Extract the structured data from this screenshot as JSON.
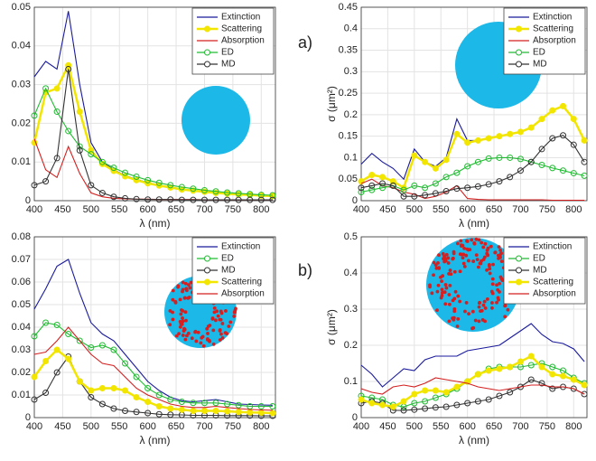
{
  "panel_labels": [
    "a)",
    "b)"
  ],
  "chart_data": [
    {
      "type": "line",
      "xlabel": "λ (nm)",
      "x": [
        400,
        420,
        440,
        460,
        480,
        500,
        520,
        540,
        560,
        580,
        600,
        620,
        640,
        660,
        680,
        700,
        720,
        740,
        760,
        780,
        800,
        820
      ],
      "xlim": [
        400,
        825
      ],
      "xticks": [
        400,
        450,
        500,
        550,
        600,
        650,
        700,
        750,
        800
      ],
      "ylim": [
        0,
        0.05
      ],
      "yticks": [
        0,
        0.01,
        0.02,
        0.03,
        0.04,
        0.05
      ],
      "grid": true,
      "legend": "northeast",
      "series": [
        {
          "name": "Extinction",
          "color": "#1a1a9c",
          "marker": "none",
          "values": [
            0.032,
            0.036,
            0.034,
            0.049,
            0.03,
            0.015,
            0.01,
            0.008,
            0.0065,
            0.0055,
            0.0047,
            0.004,
            0.0035,
            0.003,
            0.0027,
            0.0024,
            0.0021,
            0.0019,
            0.0017,
            0.0015,
            0.0014,
            0.0013
          ]
        },
        {
          "name": "Scattering",
          "color": "#f2e600",
          "marker": "filled",
          "values": [
            0.015,
            0.028,
            0.029,
            0.035,
            0.023,
            0.013,
            0.0095,
            0.0077,
            0.0063,
            0.0053,
            0.0045,
            0.0039,
            0.0034,
            0.0029,
            0.0026,
            0.0023,
            0.002,
            0.0018,
            0.0016,
            0.0015,
            0.0013,
            0.0012
          ]
        },
        {
          "name": "Absorption",
          "color": "#d42020",
          "marker": "none",
          "values": [
            0.016,
            0.008,
            0.006,
            0.014,
            0.007,
            0.002,
            0.001,
            0.0006,
            0.0005,
            0.0004,
            0.0004,
            0.0003,
            0.0003,
            0.0003,
            0.0003,
            0.0002,
            0.0002,
            0.0002,
            0.0002,
            0.0002,
            0.0002,
            0.0002
          ]
        },
        {
          "name": "ED",
          "color": "#22bb33",
          "marker": "open",
          "values": [
            0.022,
            0.029,
            0.023,
            0.018,
            0.014,
            0.012,
            0.01,
            0.0085,
            0.0072,
            0.0062,
            0.0053,
            0.0046,
            0.004,
            0.0035,
            0.0031,
            0.0027,
            0.0024,
            0.0021,
            0.0019,
            0.0017,
            0.0015,
            0.0014
          ]
        },
        {
          "name": "MD",
          "color": "#333333",
          "marker": "open",
          "values": [
            0.004,
            0.005,
            0.011,
            0.034,
            0.013,
            0.004,
            0.002,
            0.001,
            0.0006,
            0.0004,
            0.0003,
            0.0003,
            0.0003,
            0.0002,
            0.0002,
            0.0002,
            0.0002,
            0.0002,
            0.0002,
            0.0002,
            0.0002,
            0.0002
          ]
        }
      ]
    },
    {
      "type": "line",
      "xlabel": "λ (nm)",
      "ylabel": "σ (μm²)",
      "x": [
        400,
        420,
        440,
        460,
        480,
        500,
        520,
        540,
        560,
        580,
        600,
        620,
        640,
        660,
        680,
        700,
        720,
        740,
        760,
        780,
        800,
        820
      ],
      "xlim": [
        400,
        825
      ],
      "xticks": [
        400,
        450,
        500,
        550,
        600,
        650,
        700,
        750,
        800
      ],
      "ylim": [
        0,
        0.45
      ],
      "yticks": [
        0,
        0.05,
        0.1,
        0.15,
        0.2,
        0.25,
        0.3,
        0.35,
        0.4,
        0.45
      ],
      "grid": true,
      "legend": "northeast",
      "series": [
        {
          "name": "Extinction",
          "color": "#1a1a9c",
          "marker": "none",
          "values": [
            0.085,
            0.11,
            0.09,
            0.075,
            0.05,
            0.12,
            0.09,
            0.08,
            0.1,
            0.19,
            0.14,
            0.14,
            0.145,
            0.15,
            0.155,
            0.16,
            0.17,
            0.19,
            0.21,
            0.22,
            0.19,
            0.14
          ]
        },
        {
          "name": "Scattering",
          "color": "#f2e600",
          "marker": "filled",
          "values": [
            0.045,
            0.06,
            0.055,
            0.045,
            0.03,
            0.105,
            0.09,
            0.075,
            0.095,
            0.155,
            0.135,
            0.14,
            0.145,
            0.15,
            0.155,
            0.16,
            0.17,
            0.19,
            0.21,
            0.22,
            0.19,
            0.14
          ]
        },
        {
          "name": "Absorption",
          "color": "#d42020",
          "marker": "none",
          "values": [
            0.04,
            0.05,
            0.035,
            0.03,
            0.02,
            0.015,
            0.005,
            0.01,
            0.02,
            0.035,
            0.005,
            0.003,
            0.002,
            0.002,
            0.002,
            0.002,
            0.002,
            0.002,
            0.001,
            0.001,
            0.001,
            0.001
          ]
        },
        {
          "name": "ED",
          "color": "#22bb33",
          "marker": "open",
          "values": [
            0.02,
            0.025,
            0.03,
            0.035,
            0.025,
            0.035,
            0.03,
            0.04,
            0.055,
            0.065,
            0.08,
            0.09,
            0.098,
            0.1,
            0.1,
            0.097,
            0.09,
            0.083,
            0.076,
            0.07,
            0.064,
            0.058
          ]
        },
        {
          "name": "MD",
          "color": "#333333",
          "marker": "open",
          "values": [
            0.03,
            0.035,
            0.04,
            0.035,
            0.01,
            0.01,
            0.013,
            0.017,
            0.022,
            0.028,
            0.03,
            0.033,
            0.038,
            0.045,
            0.055,
            0.07,
            0.09,
            0.12,
            0.145,
            0.152,
            0.13,
            0.09
          ]
        }
      ]
    },
    {
      "type": "line",
      "xlabel": "λ (nm)",
      "x": [
        400,
        420,
        440,
        460,
        480,
        500,
        520,
        540,
        560,
        580,
        600,
        620,
        640,
        660,
        680,
        700,
        720,
        740,
        760,
        780,
        800,
        820
      ],
      "xlim": [
        400,
        825
      ],
      "xticks": [
        400,
        450,
        500,
        550,
        600,
        650,
        700,
        750,
        800
      ],
      "ylim": [
        0,
        0.08
      ],
      "yticks": [
        0,
        0.01,
        0.02,
        0.03,
        0.04,
        0.05,
        0.06,
        0.07,
        0.08
      ],
      "grid": true,
      "legend": "northeast",
      "series": [
        {
          "name": "Extinction",
          "color": "#1a1a9c",
          "marker": "none",
          "values": [
            0.048,
            0.057,
            0.067,
            0.07,
            0.055,
            0.042,
            0.037,
            0.034,
            0.028,
            0.022,
            0.016,
            0.012,
            0.009,
            0.0075,
            0.007,
            0.0075,
            0.008,
            0.007,
            0.006,
            0.0058,
            0.0056,
            0.0055
          ]
        },
        {
          "name": "ED",
          "color": "#22bb33",
          "marker": "open",
          "values": [
            0.036,
            0.042,
            0.041,
            0.037,
            0.034,
            0.031,
            0.032,
            0.03,
            0.024,
            0.018,
            0.013,
            0.01,
            0.008,
            0.007,
            0.0065,
            0.0065,
            0.0065,
            0.006,
            0.0055,
            0.005,
            0.005,
            0.005
          ]
        },
        {
          "name": "MD",
          "color": "#333333",
          "marker": "open",
          "values": [
            0.008,
            0.011,
            0.02,
            0.027,
            0.016,
            0.009,
            0.006,
            0.004,
            0.003,
            0.0025,
            0.002,
            0.0015,
            0.0013,
            0.0012,
            0.001,
            0.001,
            0.001,
            0.0009,
            0.0009,
            0.0009,
            0.0008,
            0.0008
          ]
        },
        {
          "name": "Scattering",
          "color": "#f2e600",
          "marker": "filled",
          "values": [
            0.018,
            0.025,
            0.03,
            0.026,
            0.016,
            0.012,
            0.013,
            0.013,
            0.012,
            0.009,
            0.007,
            0.005,
            0.004,
            0.0035,
            0.003,
            0.003,
            0.003,
            0.0028,
            0.0025,
            0.0023,
            0.0022,
            0.002
          ]
        },
        {
          "name": "Absorption",
          "color": "#d42020",
          "marker": "none",
          "values": [
            0.028,
            0.029,
            0.034,
            0.04,
            0.034,
            0.028,
            0.024,
            0.023,
            0.018,
            0.013,
            0.01,
            0.008,
            0.006,
            0.005,
            0.0045,
            0.0045,
            0.005,
            0.0045,
            0.004,
            0.0036,
            0.0034,
            0.0033
          ]
        }
      ]
    },
    {
      "type": "line",
      "xlabel": "λ (nm)",
      "ylabel": "σ (μm²)",
      "x": [
        400,
        420,
        440,
        460,
        480,
        500,
        520,
        540,
        560,
        580,
        600,
        620,
        640,
        660,
        680,
        700,
        720,
        740,
        760,
        780,
        800,
        820
      ],
      "xlim": [
        400,
        825
      ],
      "xticks": [
        400,
        450,
        500,
        550,
        600,
        650,
        700,
        750,
        800
      ],
      "ylim": [
        0,
        0.5
      ],
      "yticks": [
        0,
        0.1,
        0.2,
        0.3,
        0.4,
        0.5
      ],
      "grid": true,
      "legend": "northeast",
      "series": [
        {
          "name": "Extinction",
          "color": "#1a1a9c",
          "marker": "none",
          "values": [
            0.145,
            0.12,
            0.085,
            0.11,
            0.135,
            0.13,
            0.16,
            0.17,
            0.17,
            0.17,
            0.185,
            0.19,
            0.195,
            0.2,
            0.22,
            0.24,
            0.26,
            0.23,
            0.21,
            0.205,
            0.19,
            0.155
          ]
        },
        {
          "name": "ED",
          "color": "#22bb33",
          "marker": "open",
          "values": [
            0.06,
            0.055,
            0.05,
            0.035,
            0.03,
            0.04,
            0.045,
            0.055,
            0.065,
            0.08,
            0.1,
            0.12,
            0.135,
            0.14,
            0.14,
            0.14,
            0.145,
            0.15,
            0.14,
            0.13,
            0.11,
            0.095
          ]
        },
        {
          "name": "MD",
          "color": "#333333",
          "marker": "open",
          "values": [
            0.04,
            0.045,
            0.04,
            0.02,
            0.02,
            0.022,
            0.025,
            0.028,
            0.03,
            0.035,
            0.04,
            0.045,
            0.05,
            0.06,
            0.07,
            0.085,
            0.105,
            0.095,
            0.08,
            0.085,
            0.08,
            0.065
          ]
        },
        {
          "name": "Scattering",
          "color": "#f2e600",
          "marker": "filled",
          "values": [
            0.05,
            0.04,
            0.035,
            0.03,
            0.045,
            0.065,
            0.075,
            0.075,
            0.07,
            0.085,
            0.1,
            0.12,
            0.13,
            0.135,
            0.14,
            0.155,
            0.17,
            0.14,
            0.12,
            0.115,
            0.105,
            0.09
          ]
        },
        {
          "name": "Absorption",
          "color": "#d42020",
          "marker": "none",
          "values": [
            0.08,
            0.07,
            0.065,
            0.085,
            0.09,
            0.085,
            0.095,
            0.11,
            0.105,
            0.1,
            0.095,
            0.085,
            0.08,
            0.075,
            0.08,
            0.085,
            0.09,
            0.09,
            0.085,
            0.085,
            0.08,
            0.065
          ]
        }
      ]
    }
  ]
}
